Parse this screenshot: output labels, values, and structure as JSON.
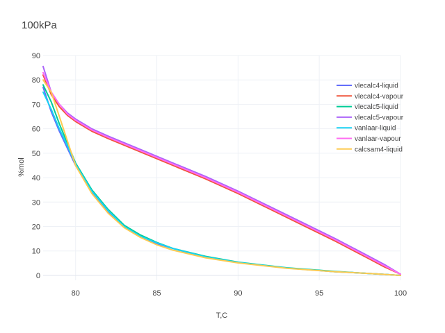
{
  "chart_data": {
    "type": "line",
    "title": "100kPa",
    "xlabel": "T,C",
    "ylabel": "%mol",
    "xlim": [
      78,
      100
    ],
    "ylim": [
      -2,
      90
    ],
    "xticks": [
      80,
      85,
      90,
      95,
      100
    ],
    "yticks": [
      0,
      10,
      20,
      30,
      40,
      50,
      60,
      70,
      80,
      90
    ],
    "grid": true,
    "legend": "right",
    "series": [
      {
        "name": "vlecalc4-liquid",
        "color": "#636efa",
        "x": [
          78.0,
          78.5,
          79.0,
          79.5,
          80.0,
          81.0,
          82.0,
          83.0,
          84.0,
          85.0,
          86.0,
          88.0,
          90.0,
          93.0,
          96.0,
          98.0,
          99.0,
          100.0
        ],
        "y": [
          77,
          67,
          59,
          52,
          45,
          34,
          26,
          20,
          16,
          13,
          11,
          7.5,
          5.2,
          3.0,
          1.5,
          0.8,
          0.4,
          0.0
        ]
      },
      {
        "name": "vlecalc4-vapour",
        "color": "#ef553b",
        "x": [
          78.0,
          78.5,
          79.0,
          79.5,
          80.0,
          81.0,
          82.0,
          84.0,
          86.0,
          88.0,
          90.0,
          92.0,
          94.0,
          96.0,
          98.0,
          99.0,
          100.0
        ],
        "y": [
          82,
          74,
          69,
          65.5,
          63,
          59,
          56,
          50.5,
          45,
          39.5,
          33.5,
          27,
          20.5,
          14,
          7,
          3.5,
          0.5
        ]
      },
      {
        "name": "vlecalc5-liquid",
        "color": "#00cc96",
        "x": [
          78.0,
          78.5,
          79.0,
          79.5,
          80.0,
          81.0,
          82.0,
          83.0,
          84.0,
          85.0,
          86.0,
          88.0,
          90.0,
          93.0,
          96.0,
          98.0,
          99.0,
          100.0
        ],
        "y": [
          78,
          71,
          62,
          54,
          46,
          35,
          27,
          20.5,
          16.5,
          13.5,
          11,
          7.8,
          5.4,
          3.1,
          1.6,
          0.8,
          0.4,
          0.0
        ]
      },
      {
        "name": "vlecalc5-vapour",
        "color": "#ab63fa",
        "x": [
          78.0,
          78.5,
          79.0,
          79.5,
          80.0,
          81.0,
          82.0,
          84.0,
          86.0,
          88.0,
          90.0,
          92.0,
          94.0,
          96.0,
          98.0,
          99.0,
          100.0
        ],
        "y": [
          85.5,
          75,
          70,
          66.5,
          64,
          60,
          57,
          51.5,
          46,
          40.5,
          34.5,
          28,
          21.5,
          15,
          8,
          4.5,
          0.5
        ]
      },
      {
        "name": "vanlaar-liquid",
        "color": "#19d3f3",
        "x": [
          78.0,
          78.5,
          79.0,
          79.5,
          80.0,
          81.0,
          82.0,
          83.0,
          84.0,
          85.0,
          86.0,
          88.0,
          90.0,
          93.0,
          96.0,
          98.0,
          99.0,
          100.0
        ],
        "y": [
          75,
          68,
          60,
          53,
          45.5,
          34.5,
          26.5,
          20,
          16,
          13.3,
          11,
          7.6,
          5.3,
          3.0,
          1.5,
          0.8,
          0.4,
          0.0
        ]
      },
      {
        "name": "vanlaar-vapour",
        "color": "#ff6cf2",
        "x": [
          78.0,
          78.5,
          79.0,
          79.5,
          80.0,
          81.0,
          82.0,
          84.0,
          86.0,
          88.0,
          90.0,
          92.0,
          94.0,
          96.0,
          98.0,
          99.0,
          100.0
        ],
        "y": [
          83,
          75,
          70,
          66,
          63.5,
          59.5,
          56.5,
          51,
          45.5,
          40,
          34,
          27.5,
          21,
          14.5,
          7.5,
          4,
          0.5
        ]
      },
      {
        "name": "calcsam4-liquid",
        "color": "#fecb52",
        "x": [
          78.0,
          78.5,
          79.0,
          79.5,
          80.0,
          81.0,
          82.0,
          83.0,
          84.0,
          85.0,
          86.0,
          88.0,
          90.0,
          93.0,
          96.0,
          98.0,
          99.0,
          100.0
        ],
        "y": [
          80,
          75,
          65,
          55,
          45,
          33.5,
          25.5,
          19.5,
          15.5,
          12.5,
          10.3,
          7.2,
          5.1,
          2.9,
          1.5,
          0.8,
          0.4,
          0.0
        ]
      }
    ]
  }
}
